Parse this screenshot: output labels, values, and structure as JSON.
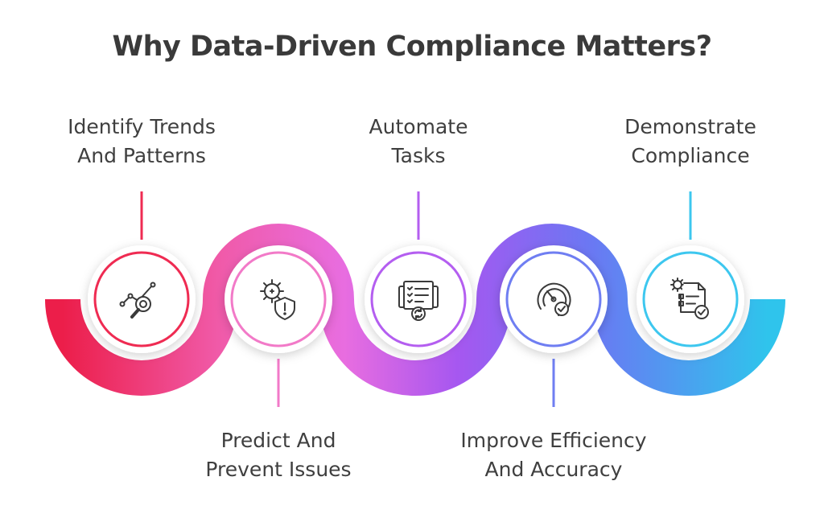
{
  "title": "Why Data-Driven Compliance Matters?",
  "steps": [
    {
      "line1": "Identify Trends",
      "line2": "And Patterns",
      "icon": "trend-magnifier-icon",
      "color": "#ef2b52"
    },
    {
      "line1": "Predict And",
      "line2": "Prevent Issues",
      "icon": "gear-shield-warning-icon",
      "color": "#f27ac8"
    },
    {
      "line1": "Automate",
      "line2": "Tasks",
      "icon": "task-list-automation-icon",
      "color": "#b45ef0"
    },
    {
      "line1": "Improve Efficiency",
      "line2": "And Accuracy",
      "icon": "gauge-check-icon",
      "color": "#6f7ef2"
    },
    {
      "line1": "Demonstrate",
      "line2": "Compliance",
      "icon": "compliance-document-check-icon",
      "color": "#3dc7ef"
    }
  ]
}
